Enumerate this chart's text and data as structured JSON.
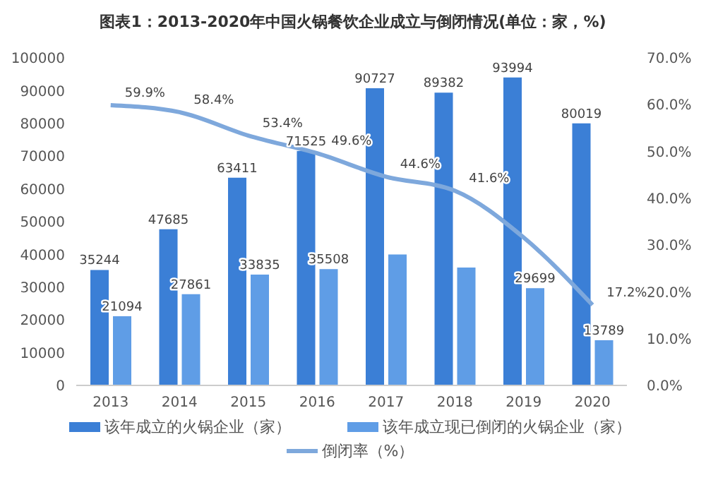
{
  "chart_data": {
    "type": "bar",
    "title": "图表1：2013-2020年中国火锅餐饮企业成立与倒闭情况(单位：家，%)",
    "categories": [
      "2013",
      "2014",
      "2015",
      "2016",
      "2017",
      "2018",
      "2019",
      "2020"
    ],
    "series": [
      {
        "name": "该年成立的火锅企业（家）",
        "color": "#3b7fd6",
        "values": [
          35244,
          47685,
          63411,
          71525,
          90727,
          89382,
          93994,
          80019
        ],
        "value_labels": [
          "35244",
          "47685",
          "63411",
          "71525",
          "90727",
          "89382",
          "93994",
          "80019"
        ]
      },
      {
        "name": "该年成立现已倒闭的火锅企业（家）",
        "color": "#5f9de6",
        "values": [
          21094,
          27861,
          33835,
          35508,
          40000,
          36000,
          29699,
          13789
        ],
        "value_labels": [
          "21094",
          "27861",
          "33835",
          "35508",
          null,
          null,
          "29699",
          "13789"
        ]
      },
      {
        "name": "倒闭率（%）",
        "type": "line",
        "axis": "y2",
        "color": "#7ea8dc",
        "values": [
          59.9,
          58.4,
          53.4,
          49.6,
          44.6,
          41.6,
          31.6,
          17.2
        ],
        "value_labels": [
          "59.9%",
          "58.4%",
          "53.4%",
          "49.6%",
          "44.6%",
          "41.6%",
          null,
          "17.2%"
        ]
      }
    ],
    "ylim": [
      0,
      100000
    ],
    "yticks": [
      0,
      10000,
      20000,
      30000,
      40000,
      50000,
      60000,
      70000,
      80000,
      90000,
      100000
    ],
    "y2lim": [
      0,
      70
    ],
    "y2ticks": [
      {
        "value": 0,
        "label": "0.0%"
      },
      {
        "value": 10,
        "label": "10.0%"
      },
      {
        "value": 20,
        "label": "20.0%"
      },
      {
        "value": 30,
        "label": "30.0%"
      },
      {
        "value": 40,
        "label": "40.0%"
      },
      {
        "value": 50,
        "label": "50.0%"
      },
      {
        "value": 60,
        "label": "60.0%"
      },
      {
        "value": 70,
        "label": "70.0%"
      }
    ],
    "grid": false,
    "legend": "bottom",
    "marker": "none",
    "line_style": "solid"
  }
}
